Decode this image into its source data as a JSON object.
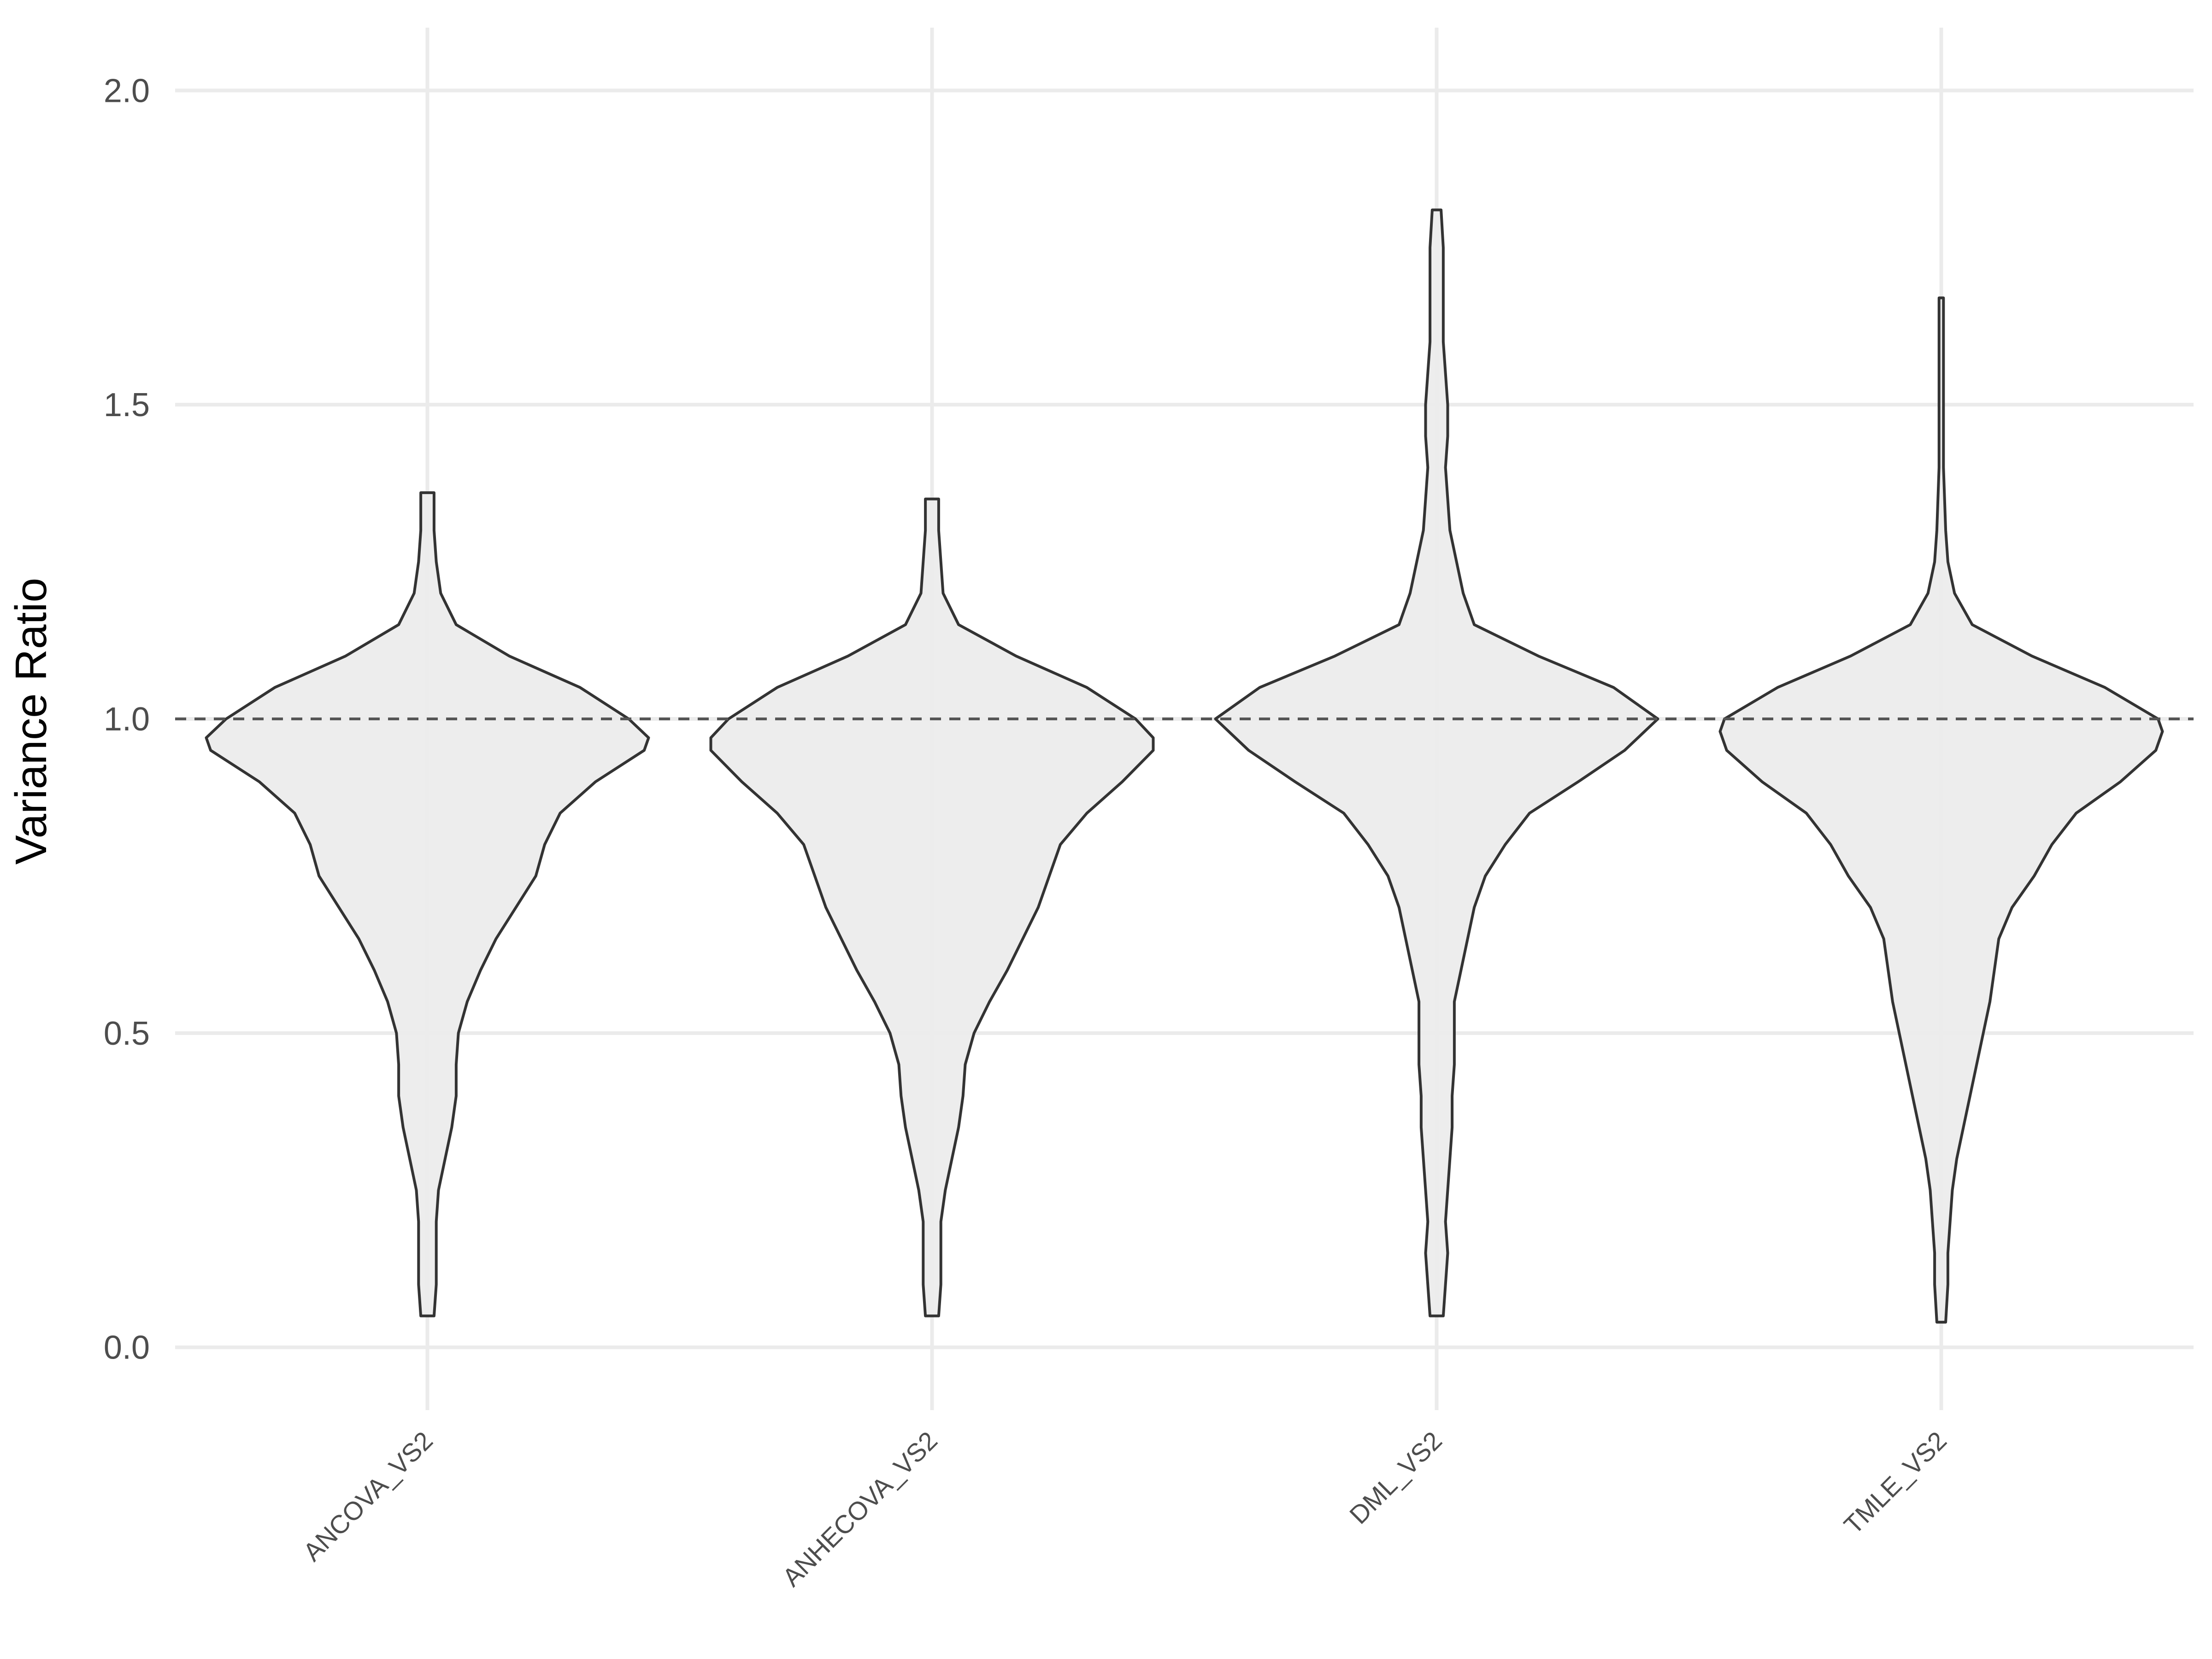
{
  "chart_data": {
    "type": "violin",
    "title": "",
    "xlabel": "",
    "ylabel": "Variance Ratio",
    "ylim": [
      -0.1,
      2.1
    ],
    "yticks": [
      "0.0",
      "0.5",
      "1.0",
      "1.5",
      "2.0"
    ],
    "grid": true,
    "reference_line": 1.0,
    "colors": {
      "fill": "#ebebeb",
      "outline": "#333333",
      "grid": "#ebebeb",
      "reference": "#555555"
    },
    "categories": [
      "ANCOVA_VS2",
      "ANHECOVA_VS2",
      "DML_VS2",
      "TMLE_VS2"
    ],
    "series": [
      {
        "category": "ANCOVA_VS2",
        "y_min": 0.05,
        "y_max": 1.36,
        "density": [
          [
            0.05,
            0.03
          ],
          [
            0.1,
            0.04
          ],
          [
            0.15,
            0.04
          ],
          [
            0.2,
            0.04
          ],
          [
            0.25,
            0.05
          ],
          [
            0.3,
            0.08
          ],
          [
            0.35,
            0.11
          ],
          [
            0.4,
            0.13
          ],
          [
            0.45,
            0.13
          ],
          [
            0.5,
            0.14
          ],
          [
            0.55,
            0.18
          ],
          [
            0.6,
            0.24
          ],
          [
            0.65,
            0.31
          ],
          [
            0.7,
            0.4
          ],
          [
            0.75,
            0.49
          ],
          [
            0.8,
            0.53
          ],
          [
            0.85,
            0.6
          ],
          [
            0.9,
            0.76
          ],
          [
            0.95,
            0.98
          ],
          [
            0.97,
            1.0
          ],
          [
            1.0,
            0.91
          ],
          [
            1.05,
            0.69
          ],
          [
            1.1,
            0.37
          ],
          [
            1.15,
            0.13
          ],
          [
            1.2,
            0.06
          ],
          [
            1.25,
            0.04
          ],
          [
            1.3,
            0.03
          ],
          [
            1.36,
            0.03
          ]
        ]
      },
      {
        "category": "ANHECOVA_VS2",
        "y_min": 0.05,
        "y_max": 1.35,
        "density": [
          [
            0.05,
            0.03
          ],
          [
            0.1,
            0.04
          ],
          [
            0.15,
            0.04
          ],
          [
            0.2,
            0.04
          ],
          [
            0.25,
            0.06
          ],
          [
            0.3,
            0.09
          ],
          [
            0.35,
            0.12
          ],
          [
            0.4,
            0.14
          ],
          [
            0.45,
            0.15
          ],
          [
            0.5,
            0.19
          ],
          [
            0.55,
            0.26
          ],
          [
            0.6,
            0.34
          ],
          [
            0.65,
            0.41
          ],
          [
            0.7,
            0.48
          ],
          [
            0.75,
            0.53
          ],
          [
            0.8,
            0.58
          ],
          [
            0.85,
            0.7
          ],
          [
            0.9,
            0.86
          ],
          [
            0.95,
            1.0
          ],
          [
            0.97,
            1.0
          ],
          [
            1.0,
            0.92
          ],
          [
            1.05,
            0.7
          ],
          [
            1.1,
            0.38
          ],
          [
            1.15,
            0.12
          ],
          [
            1.2,
            0.05
          ],
          [
            1.25,
            0.04
          ],
          [
            1.3,
            0.03
          ],
          [
            1.35,
            0.03
          ]
        ]
      },
      {
        "category": "DML_VS2",
        "y_min": 0.05,
        "y_max": 1.81,
        "density": [
          [
            0.05,
            0.03
          ],
          [
            0.1,
            0.04
          ],
          [
            0.15,
            0.05
          ],
          [
            0.2,
            0.04
          ],
          [
            0.25,
            0.05
          ],
          [
            0.3,
            0.06
          ],
          [
            0.35,
            0.07
          ],
          [
            0.4,
            0.07
          ],
          [
            0.45,
            0.08
          ],
          [
            0.5,
            0.08
          ],
          [
            0.55,
            0.08
          ],
          [
            0.6,
            0.11
          ],
          [
            0.65,
            0.14
          ],
          [
            0.7,
            0.17
          ],
          [
            0.75,
            0.22
          ],
          [
            0.8,
            0.31
          ],
          [
            0.85,
            0.42
          ],
          [
            0.9,
            0.64
          ],
          [
            0.95,
            0.85
          ],
          [
            1.0,
            1.0
          ],
          [
            1.05,
            0.8
          ],
          [
            1.1,
            0.46
          ],
          [
            1.15,
            0.17
          ],
          [
            1.2,
            0.12
          ],
          [
            1.25,
            0.09
          ],
          [
            1.3,
            0.06
          ],
          [
            1.35,
            0.05
          ],
          [
            1.4,
            0.04
          ],
          [
            1.45,
            0.05
          ],
          [
            1.5,
            0.05
          ],
          [
            1.55,
            0.04
          ],
          [
            1.6,
            0.03
          ],
          [
            1.65,
            0.03
          ],
          [
            1.7,
            0.03
          ],
          [
            1.75,
            0.03
          ],
          [
            1.81,
            0.02
          ]
        ]
      },
      {
        "category": "TMLE_VS2",
        "y_min": 0.04,
        "y_max": 1.67,
        "density": [
          [
            0.04,
            0.02
          ],
          [
            0.1,
            0.03
          ],
          [
            0.15,
            0.03
          ],
          [
            0.2,
            0.04
          ],
          [
            0.25,
            0.05
          ],
          [
            0.3,
            0.07
          ],
          [
            0.35,
            0.1
          ],
          [
            0.4,
            0.13
          ],
          [
            0.45,
            0.16
          ],
          [
            0.5,
            0.19
          ],
          [
            0.55,
            0.22
          ],
          [
            0.6,
            0.24
          ],
          [
            0.65,
            0.26
          ],
          [
            0.7,
            0.32
          ],
          [
            0.75,
            0.42
          ],
          [
            0.8,
            0.5
          ],
          [
            0.85,
            0.61
          ],
          [
            0.9,
            0.81
          ],
          [
            0.95,
            0.97
          ],
          [
            0.98,
            1.0
          ],
          [
            1.0,
            0.98
          ],
          [
            1.05,
            0.74
          ],
          [
            1.1,
            0.41
          ],
          [
            1.15,
            0.14
          ],
          [
            1.2,
            0.06
          ],
          [
            1.25,
            0.03
          ],
          [
            1.3,
            0.02
          ],
          [
            1.4,
            0.01
          ],
          [
            1.5,
            0.01
          ],
          [
            1.6,
            0.01
          ],
          [
            1.67,
            0.01
          ]
        ]
      }
    ]
  }
}
